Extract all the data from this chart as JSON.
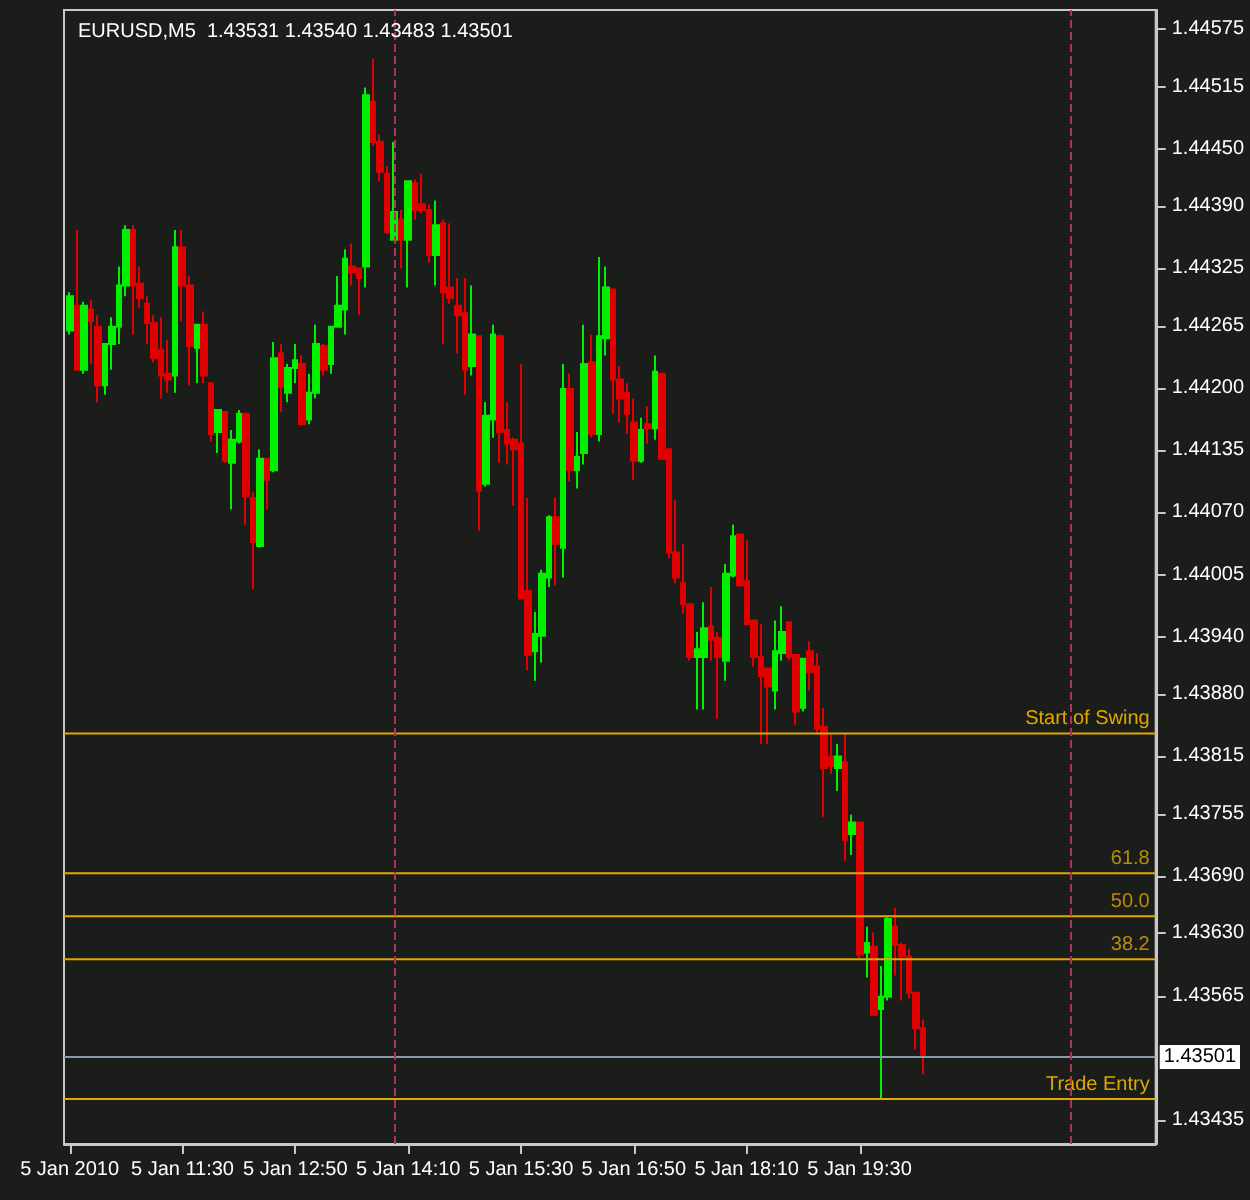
{
  "chart_data": {
    "type": "candlestick",
    "title": "EURUSD,M5  1.43531 1.43540 1.43483 1.43501",
    "x": [
      "2010-01-05T10:10",
      "2010-01-05T10:15",
      "2010-01-05T10:20",
      "2010-01-05T10:25",
      "2010-01-05T10:30",
      "2010-01-05T10:35",
      "2010-01-05T10:40",
      "2010-01-05T10:45",
      "2010-01-05T10:50",
      "2010-01-05T10:55",
      "2010-01-05T11:00",
      "2010-01-05T11:05",
      "2010-01-05T11:10",
      "2010-01-05T11:15",
      "2010-01-05T11:20",
      "2010-01-05T11:25",
      "2010-01-05T11:30",
      "2010-01-05T11:35",
      "2010-01-05T11:40",
      "2010-01-05T11:45",
      "2010-01-05T11:50",
      "2010-01-05T11:55",
      "2010-01-05T12:00",
      "2010-01-05T12:05",
      "2010-01-05T12:10",
      "2010-01-05T12:15",
      "2010-01-05T12:20",
      "2010-01-05T12:25",
      "2010-01-05T12:30",
      "2010-01-05T12:35",
      "2010-01-05T12:40",
      "2010-01-05T12:45",
      "2010-01-05T12:50",
      "2010-01-05T12:55",
      "2010-01-05T13:00",
      "2010-01-05T13:05",
      "2010-01-05T13:10",
      "2010-01-05T13:15",
      "2010-01-05T13:20",
      "2010-01-05T13:25",
      "2010-01-05T13:30",
      "2010-01-05T13:35",
      "2010-01-05T13:40",
      "2010-01-05T13:45",
      "2010-01-05T13:50",
      "2010-01-05T13:55",
      "2010-01-05T14:00",
      "2010-01-05T14:05",
      "2010-01-05T14:10",
      "2010-01-05T14:15",
      "2010-01-05T14:20",
      "2010-01-05T14:25",
      "2010-01-05T14:30",
      "2010-01-05T14:35",
      "2010-01-05T14:40",
      "2010-01-05T14:45",
      "2010-01-05T14:50",
      "2010-01-05T14:55",
      "2010-01-05T15:00",
      "2010-01-05T15:05",
      "2010-01-05T15:10",
      "2010-01-05T15:15",
      "2010-01-05T15:20",
      "2010-01-05T15:25",
      "2010-01-05T15:30",
      "2010-01-05T15:35",
      "2010-01-05T15:40",
      "2010-01-05T15:45",
      "2010-01-05T15:50",
      "2010-01-05T15:55",
      "2010-01-05T16:00",
      "2010-01-05T16:05",
      "2010-01-05T16:10",
      "2010-01-05T16:15",
      "2010-01-05T16:20",
      "2010-01-05T16:25",
      "2010-01-05T16:30",
      "2010-01-05T16:35",
      "2010-01-05T16:40",
      "2010-01-05T16:45",
      "2010-01-05T16:50",
      "2010-01-05T16:55",
      "2010-01-05T17:00",
      "2010-01-05T17:05",
      "2010-01-05T17:10",
      "2010-01-05T17:15",
      "2010-01-05T17:20",
      "2010-01-05T17:25",
      "2010-01-05T17:30",
      "2010-01-05T17:35",
      "2010-01-05T17:40",
      "2010-01-05T17:45",
      "2010-01-05T17:50",
      "2010-01-05T17:55",
      "2010-01-05T18:00",
      "2010-01-05T18:05",
      "2010-01-05T18:10",
      "2010-01-05T18:15",
      "2010-01-05T18:20",
      "2010-01-05T18:25",
      "2010-01-05T18:30",
      "2010-01-05T18:35",
      "2010-01-05T18:40",
      "2010-01-05T18:45",
      "2010-01-05T18:50",
      "2010-01-05T18:55",
      "2010-01-05T19:00",
      "2010-01-05T19:05",
      "2010-01-05T19:10",
      "2010-01-05T19:15",
      "2010-01-05T19:20",
      "2010-01-05T19:25",
      "2010-01-05T19:30",
      "2010-01-05T19:35",
      "2010-01-05T19:40",
      "2010-01-05T19:45",
      "2010-01-05T19:50",
      "2010-01-05T19:55",
      "2010-01-05T20:00",
      "2010-01-05T20:05",
      "2010-01-05T20:10",
      "2010-01-05T20:15"
    ],
    "ohlc": [
      [
        1.4426,
        1.443,
        1.44256,
        1.44296
      ],
      [
        1.44286,
        1.44365,
        1.44219,
        1.44219
      ],
      [
        1.44219,
        1.4429,
        1.44215,
        1.44286
      ],
      [
        1.44282,
        1.44292,
        1.44225,
        1.4427
      ],
      [
        1.44264,
        1.44276,
        1.44185,
        1.44203
      ],
      [
        1.44203,
        1.44246,
        1.44193,
        1.44246
      ],
      [
        1.44246,
        1.44274,
        1.44219,
        1.44264
      ],
      [
        1.44264,
        1.44327,
        1.44246,
        1.44307
      ],
      [
        1.44307,
        1.4437,
        1.44296,
        1.44365
      ],
      [
        1.44365,
        1.4437,
        1.44256,
        1.44307
      ],
      [
        1.44309,
        1.44327,
        1.44284,
        1.44294
      ],
      [
        1.44288,
        1.44296,
        1.44246,
        1.44268
      ],
      [
        1.44268,
        1.44276,
        1.44227,
        1.44231
      ],
      [
        1.4424,
        1.44274,
        1.44189,
        1.44213
      ],
      [
        1.44215,
        1.4425,
        1.44195,
        1.44209
      ],
      [
        1.44213,
        1.44365,
        1.44195,
        1.44347
      ],
      [
        1.44347,
        1.44365,
        1.4427,
        1.44307
      ],
      [
        1.44307,
        1.44317,
        1.44203,
        1.44244
      ],
      [
        1.44242,
        1.44266,
        1.44205,
        1.44266
      ],
      [
        1.44266,
        1.4428,
        1.44205,
        1.44213
      ],
      [
        1.44205,
        1.44205,
        1.44144,
        1.44152
      ],
      [
        1.44154,
        1.44177,
        1.44132,
        1.44177
      ],
      [
        1.44175,
        1.44175,
        1.44122,
        1.44124
      ],
      [
        1.44122,
        1.44156,
        1.44073,
        1.44146
      ],
      [
        1.44144,
        1.44177,
        1.44142,
        1.44173
      ],
      [
        1.44173,
        1.44173,
        1.44057,
        1.44087
      ],
      [
        1.44085,
        1.44091,
        1.4399,
        1.44039
      ],
      [
        1.44035,
        1.44136,
        1.44033,
        1.44126
      ],
      [
        1.44126,
        1.44126,
        1.44073,
        1.44104
      ],
      [
        1.44114,
        1.44248,
        1.44112,
        1.44231
      ],
      [
        1.44236,
        1.44246,
        1.44175,
        1.44201
      ],
      [
        1.44195,
        1.44225,
        1.44185,
        1.44221
      ],
      [
        1.44221,
        1.44246,
        1.44205,
        1.44229
      ],
      [
        1.44225,
        1.44234,
        1.44162,
        1.44162
      ],
      [
        1.44167,
        1.44215,
        1.44162,
        1.44195
      ],
      [
        1.44195,
        1.44266,
        1.44189,
        1.44246
      ],
      [
        1.44244,
        1.44246,
        1.44213,
        1.44219
      ],
      [
        1.44225,
        1.44264,
        1.44215,
        1.44264
      ],
      [
        1.44264,
        1.44317,
        1.44264,
        1.44286
      ],
      [
        1.44282,
        1.44345,
        1.44256,
        1.44335
      ],
      [
        1.44327,
        1.44351,
        1.44307,
        1.44321
      ],
      [
        1.44325,
        1.44325,
        1.44276,
        1.44315
      ],
      [
        1.44327,
        1.44514,
        1.44305,
        1.44506
      ],
      [
        1.44499,
        1.44544,
        1.44453,
        1.44457
      ],
      [
        1.44457,
        1.44465,
        1.44416,
        1.44426
      ],
      [
        1.44424,
        1.44432,
        1.44361,
        1.44363
      ],
      [
        1.44355,
        1.44457,
        1.44355,
        1.44384
      ],
      [
        1.44376,
        1.44386,
        1.44325,
        1.44355
      ],
      [
        1.44355,
        1.44416,
        1.44305,
        1.44416
      ],
      [
        1.44414,
        1.44418,
        1.44376,
        1.44386
      ],
      [
        1.44392,
        1.44424,
        1.44382,
        1.44386
      ],
      [
        1.44386,
        1.44392,
        1.44331,
        1.44339
      ],
      [
        1.44339,
        1.44396,
        1.44307,
        1.4437
      ],
      [
        1.44372,
        1.44376,
        1.44246,
        1.443
      ],
      [
        1.44305,
        1.44372,
        1.44288,
        1.44294
      ],
      [
        1.44286,
        1.44315,
        1.44236,
        1.44276
      ],
      [
        1.44278,
        1.44315,
        1.44193,
        1.44219
      ],
      [
        1.44223,
        1.44307,
        1.44213,
        1.44256
      ],
      [
        1.44254,
        1.44254,
        1.44051,
        1.44093
      ],
      [
        1.441,
        1.44185,
        1.44097,
        1.44171
      ],
      [
        1.44167,
        1.44266,
        1.44148,
        1.44256
      ],
      [
        1.44254,
        1.44256,
        1.44122,
        1.44154
      ],
      [
        1.44156,
        1.44185,
        1.4412,
        1.44142
      ],
      [
        1.44146,
        1.44148,
        1.44077,
        1.44136
      ],
      [
        1.44142,
        1.44225,
        1.4398,
        1.4398
      ],
      [
        1.43988,
        1.44085,
        1.43905,
        1.43921
      ],
      [
        1.43925,
        1.43966,
        1.43894,
        1.43943
      ],
      [
        1.43941,
        1.4401,
        1.43913,
        1.44006
      ],
      [
        1.44002,
        1.44067,
        1.43992,
        1.44065
      ],
      [
        1.44065,
        1.44085,
        1.43994,
        1.44037
      ],
      [
        1.44033,
        1.44225,
        1.44002,
        1.44199
      ],
      [
        1.44199,
        1.44215,
        1.44102,
        1.44114
      ],
      [
        1.44114,
        1.44154,
        1.44095,
        1.44128
      ],
      [
        1.44132,
        1.44266,
        1.4412,
        1.44225
      ],
      [
        1.44227,
        1.44256,
        1.44148,
        1.44152
      ],
      [
        1.44152,
        1.44337,
        1.44144,
        1.44254
      ],
      [
        1.44252,
        1.44327,
        1.44234,
        1.44305
      ],
      [
        1.44303,
        1.44303,
        1.44173,
        1.44209
      ],
      [
        1.44209,
        1.44223,
        1.44164,
        1.44189
      ],
      [
        1.44195,
        1.44205,
        1.44152,
        1.44173
      ],
      [
        1.44164,
        1.44189,
        1.44104,
        1.44124
      ],
      [
        1.44124,
        1.44169,
        1.44122,
        1.44156
      ],
      [
        1.44162,
        1.44181,
        1.44142,
        1.44158
      ],
      [
        1.44158,
        1.44234,
        1.44146,
        1.44217
      ],
      [
        1.44215,
        1.44215,
        1.44126,
        1.44126
      ],
      [
        1.44136,
        1.44136,
        1.44022,
        1.44028
      ],
      [
        1.44028,
        1.44083,
        1.43996,
        1.44002
      ],
      [
        1.43996,
        1.44037,
        1.43964,
        1.43974
      ],
      [
        1.43974,
        1.43974,
        1.43915,
        1.43919
      ],
      [
        1.43919,
        1.43945,
        1.43864,
        1.43927
      ],
      [
        1.43919,
        1.43976,
        1.43864,
        1.43949
      ],
      [
        1.43951,
        1.43992,
        1.43915,
        1.43937
      ],
      [
        1.43939,
        1.43945,
        1.43854,
        1.43919
      ],
      [
        1.43915,
        1.44016,
        1.43894,
        1.44006
      ],
      [
        1.44004,
        1.44057,
        1.44002,
        1.44045
      ],
      [
        1.44047,
        1.44047,
        1.43992,
        1.43994
      ],
      [
        1.43998,
        1.44041,
        1.43953,
        1.43953
      ],
      [
        1.43957,
        1.43957,
        1.43909,
        1.43919
      ],
      [
        1.43919,
        1.43953,
        1.43828,
        1.43899
      ],
      [
        1.43907,
        1.43907,
        1.43828,
        1.43888
      ],
      [
        1.43884,
        1.43957,
        1.43864,
        1.43925
      ],
      [
        1.43923,
        1.43972,
        1.43915,
        1.43945
      ],
      [
        1.43955,
        1.43955,
        1.43915,
        1.43919
      ],
      [
        1.43921,
        1.43921,
        1.43848,
        1.43862
      ],
      [
        1.43866,
        1.43917,
        1.43862,
        1.43917
      ],
      [
        1.43925,
        1.43935,
        1.43884,
        1.43903
      ],
      [
        1.43909,
        1.43923,
        1.43838,
        1.43844
      ],
      [
        1.43846,
        1.43866,
        1.43752,
        1.43803
      ],
      [
        1.43815,
        1.43838,
        1.43797,
        1.43805
      ],
      [
        1.43803,
        1.43828,
        1.43779,
        1.43815
      ],
      [
        1.43809,
        1.43839,
        1.43706,
        1.43728
      ],
      [
        1.43734,
        1.43754,
        1.43712,
        1.43746
      ],
      [
        1.43746,
        1.43746,
        1.43604,
        1.43608
      ],
      [
        1.4361,
        1.43637,
        1.43584,
        1.4362
      ],
      [
        1.43616,
        1.43631,
        1.43545,
        1.43545
      ],
      [
        1.43551,
        1.43596,
        1.43457,
        1.43564
      ],
      [
        1.43564,
        1.43647,
        1.4356,
        1.43645
      ],
      [
        1.43637,
        1.43657,
        1.43586,
        1.43618
      ],
      [
        1.43618,
        1.4362,
        1.4356,
        1.43606
      ],
      [
        1.43606,
        1.43614,
        1.43562,
        1.43568
      ],
      [
        1.43568,
        1.43568,
        1.43509,
        1.43531
      ],
      [
        1.43531,
        1.4354,
        1.43483,
        1.43501
      ]
    ],
    "xlim": [
      "2010-01-05T10:06",
      "2010-01-05T23:00"
    ],
    "xticks": [
      {
        "value": "2010-01-05T10:10",
        "label": "5 Jan 2010"
      },
      {
        "value": "2010-01-05T11:30",
        "label": "5 Jan 11:30"
      },
      {
        "value": "2010-01-05T12:50",
        "label": "5 Jan 12:50"
      },
      {
        "value": "2010-01-05T14:10",
        "label": "5 Jan 14:10"
      },
      {
        "value": "2010-01-05T15:30",
        "label": "5 Jan 15:30"
      },
      {
        "value": "2010-01-05T16:50",
        "label": "5 Jan 16:50"
      },
      {
        "value": "2010-01-05T18:10",
        "label": "5 Jan 18:10"
      },
      {
        "value": "2010-01-05T19:30",
        "label": "5 Jan 19:30"
      }
    ],
    "ylim": [
      1.4341,
      1.44595
    ],
    "yticks": [
      1.43435,
      1.43565,
      {
        "value": 1.4363,
        "label": "1.43630"
      },
      {
        "value": 1.4369,
        "label": "1.43690"
      },
      1.43755,
      1.43815,
      {
        "value": 1.4388,
        "label": "1.43880"
      },
      {
        "value": 1.4394,
        "label": "1.43940"
      },
      1.44005,
      {
        "value": 1.4407,
        "label": "1.44070"
      },
      1.44135,
      {
        "value": 1.442,
        "label": "1.44200"
      },
      1.44265,
      1.44325,
      {
        "value": 1.4439,
        "label": "1.44390"
      },
      {
        "value": 1.4445,
        "label": "1.44450"
      },
      1.44515,
      1.44575
    ],
    "ref_lines": [
      {
        "axis": "x",
        "value": "2010-01-05T14:00",
        "label": null,
        "color": "#b03060",
        "line_style": "dashed"
      },
      {
        "axis": "x",
        "value": "2010-01-05T22:00",
        "label": null,
        "color": "#b03060",
        "line_style": "dashed"
      },
      {
        "axis": "y",
        "value": 1.43839,
        "label": "Start of Swing",
        "color": "#e0a800",
        "line_style": "solid"
      },
      {
        "axis": "y",
        "value": 1.43693,
        "label": null,
        "color": "#e0a800",
        "line_style": "solid"
      },
      {
        "axis": "y",
        "value": 1.43648,
        "label": null,
        "color": "#e0a800",
        "line_style": "solid"
      },
      {
        "axis": "y",
        "value": 1.43603,
        "label": null,
        "color": "#e0a800",
        "line_style": "solid"
      },
      {
        "axis": "y",
        "value": 1.43457,
        "label": "Trade Entry",
        "color": "#e0a800",
        "line_style": "solid"
      },
      {
        "axis": "y",
        "value": 1.43501,
        "label": "1.43501",
        "color": "#8a9aa8",
        "line_style": "solid"
      }
    ],
    "annotations": [
      {
        "text": "61.8",
        "y": 1.43693
      },
      {
        "text": "50.0",
        "y": 1.43648
      },
      {
        "text": "38.2",
        "y": 1.43603
      }
    ]
  }
}
